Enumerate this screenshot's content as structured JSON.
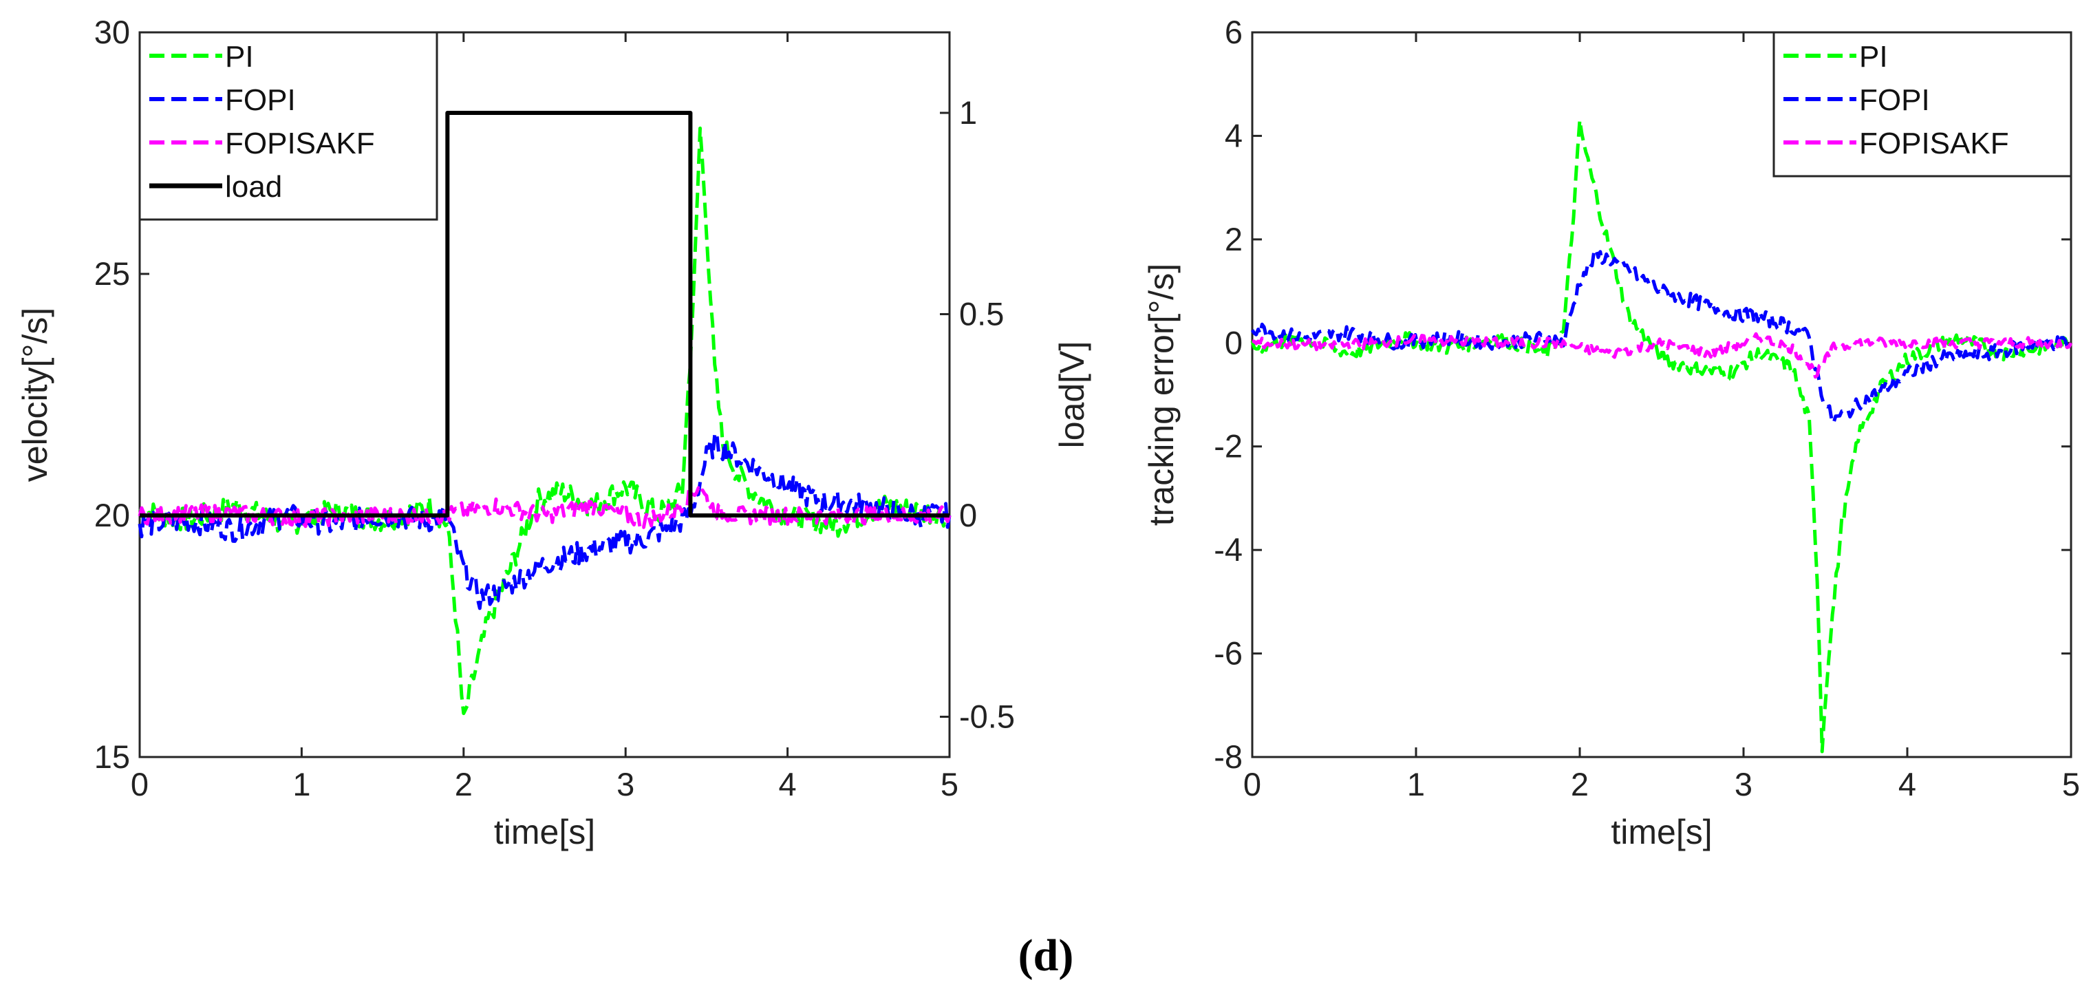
{
  "figure_caption": "(d)",
  "chart_data": [
    {
      "type": "line",
      "panel": "left",
      "xlabel": "time[s]",
      "ylabel": "velocity[°/s]",
      "ylabel_right": "load[V]",
      "xlim": [
        0,
        5
      ],
      "ylim": [
        15,
        30
      ],
      "ylim_right": [
        -0.6,
        1.2
      ],
      "x_ticks": [
        "0",
        "1",
        "2",
        "3",
        "4",
        "5"
      ],
      "y_ticks": [
        "15",
        "20",
        "25",
        "30"
      ],
      "y_ticks_right": [
        "-0.5",
        "0",
        "0.5",
        "1"
      ],
      "legend_position": "top-left",
      "series": [
        {
          "name": "PI",
          "style": "dashed",
          "color": "#00ff00",
          "x": [
            0,
            0.3,
            0.6,
            0.9,
            1.2,
            1.5,
            1.8,
            1.9,
            1.95,
            2.0,
            2.05,
            2.15,
            2.3,
            2.45,
            2.6,
            2.8,
            3.0,
            3.2,
            3.35,
            3.42,
            3.46,
            3.5,
            3.55,
            3.6,
            3.7,
            3.85,
            4.0,
            4.3,
            4.6,
            5.0
          ],
          "y": [
            20.1,
            19.9,
            20.2,
            19.8,
            20.1,
            19.9,
            20.2,
            19.8,
            18.0,
            15.7,
            16.5,
            17.8,
            19.0,
            20.3,
            20.5,
            20.2,
            20.6,
            20.0,
            20.5,
            24.5,
            28.0,
            26.0,
            23.0,
            21.5,
            20.8,
            20.3,
            20.0,
            19.8,
            20.2,
            20.0
          ]
        },
        {
          "name": "FOPI",
          "style": "dashed",
          "color": "#0000ff",
          "x": [
            0,
            0.3,
            0.6,
            0.9,
            1.2,
            1.5,
            1.8,
            1.9,
            1.95,
            2.0,
            2.1,
            2.2,
            2.35,
            2.5,
            2.7,
            2.9,
            3.1,
            3.3,
            3.4,
            3.45,
            3.5,
            3.55,
            3.65,
            3.8,
            4.0,
            4.2,
            4.5,
            4.8,
            5.0
          ],
          "y": [
            19.8,
            19.9,
            19.7,
            20.0,
            19.8,
            20.0,
            19.9,
            20.0,
            19.4,
            18.9,
            18.3,
            18.4,
            18.7,
            19.0,
            19.2,
            19.4,
            19.5,
            19.8,
            20.0,
            20.6,
            21.2,
            21.5,
            21.3,
            21.0,
            20.6,
            20.3,
            20.2,
            20.0,
            20.0
          ]
        },
        {
          "name": "FOPISAKF",
          "style": "dashed",
          "color": "#ff00ff",
          "x": [
            0,
            0.5,
            1.0,
            1.5,
            1.9,
            2.0,
            2.2,
            2.5,
            2.8,
            3.1,
            3.3,
            3.45,
            3.55,
            3.7,
            4.0,
            4.5,
            5.0
          ],
          "y": [
            20.0,
            20.05,
            19.95,
            20.0,
            20.0,
            20.1,
            20.2,
            20.0,
            20.2,
            19.9,
            20.1,
            20.6,
            20.1,
            20.0,
            20.0,
            20.0,
            20.0
          ]
        },
        {
          "name": "load",
          "style": "solid",
          "color": "#000000",
          "axis": "right",
          "x": [
            0,
            1.9,
            1.9,
            3.4,
            3.4,
            5.0
          ],
          "y": [
            0,
            0,
            1,
            1,
            0,
            0
          ]
        }
      ]
    },
    {
      "type": "line",
      "panel": "right",
      "xlabel": "time[s]",
      "ylabel": "tracking error[°/s]",
      "xlim": [
        0,
        5
      ],
      "ylim": [
        -8,
        6
      ],
      "x_ticks": [
        "0",
        "1",
        "2",
        "3",
        "4",
        "5"
      ],
      "y_ticks": [
        "-8",
        "-6",
        "-4",
        "-2",
        "0",
        "2",
        "4",
        "6"
      ],
      "legend_position": "top-right",
      "series": [
        {
          "name": "PI",
          "style": "dashed",
          "color": "#00ff00",
          "x": [
            0,
            0.3,
            0.6,
            0.9,
            1.2,
            1.5,
            1.8,
            1.9,
            1.95,
            2.0,
            2.05,
            2.15,
            2.3,
            2.5,
            2.7,
            2.9,
            3.1,
            3.3,
            3.4,
            3.45,
            3.48,
            3.52,
            3.6,
            3.7,
            3.85,
            4.0,
            4.3,
            4.6,
            5.0
          ],
          "y": [
            -0.1,
            0.1,
            -0.2,
            0.1,
            -0.1,
            0.1,
            -0.2,
            0.2,
            2.0,
            4.2,
            3.5,
            2.2,
            0.5,
            -0.3,
            -0.5,
            -0.6,
            -0.2,
            -0.5,
            -1.5,
            -4.5,
            -7.8,
            -6.0,
            -3.5,
            -1.8,
            -0.8,
            -0.3,
            0.1,
            -0.2,
            0.0
          ]
        },
        {
          "name": "FOPI",
          "style": "dashed",
          "color": "#0000ff",
          "x": [
            0,
            0.3,
            0.6,
            0.9,
            1.2,
            1.5,
            1.8,
            1.9,
            1.95,
            2.0,
            2.1,
            2.2,
            2.35,
            2.5,
            2.7,
            2.9,
            3.1,
            3.3,
            3.4,
            3.45,
            3.5,
            3.55,
            3.65,
            3.8,
            4.0,
            4.2,
            4.5,
            4.8,
            5.0
          ],
          "y": [
            0.3,
            0.1,
            0.2,
            0.0,
            0.1,
            0.0,
            0.1,
            0.0,
            0.6,
            1.2,
            1.7,
            1.6,
            1.3,
            1.0,
            0.8,
            0.6,
            0.5,
            0.3,
            0.1,
            -0.6,
            -1.2,
            -1.5,
            -1.3,
            -1.0,
            -0.6,
            -0.3,
            -0.2,
            0.0,
            0.0
          ]
        },
        {
          "name": "FOPISAKF",
          "style": "dashed",
          "color": "#ff00ff",
          "x": [
            0,
            0.5,
            1.0,
            1.5,
            1.9,
            2.0,
            2.2,
            2.5,
            2.8,
            3.1,
            3.3,
            3.45,
            3.55,
            3.7,
            4.0,
            4.5,
            5.0
          ],
          "y": [
            0.0,
            -0.05,
            0.05,
            0.0,
            0.0,
            -0.1,
            -0.2,
            0.0,
            -0.2,
            0.1,
            -0.1,
            -0.6,
            -0.1,
            0.0,
            0.0,
            0.0,
            0.0
          ]
        }
      ]
    }
  ]
}
